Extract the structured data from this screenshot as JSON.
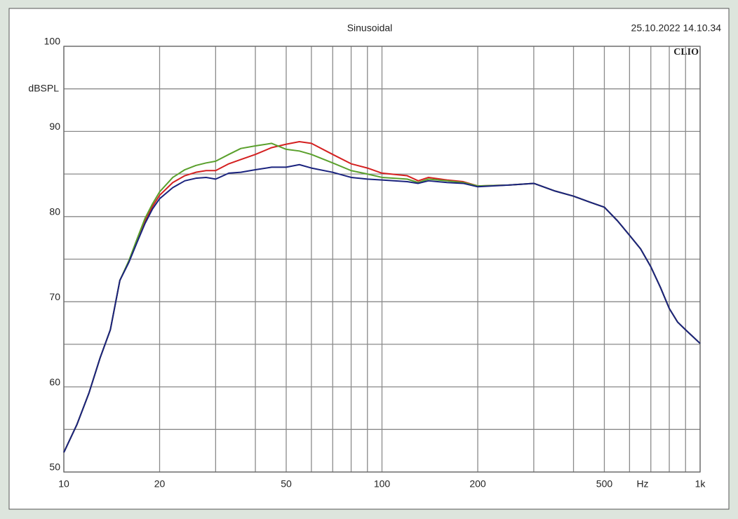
{
  "chart_data": {
    "type": "line",
    "title": "Sinusoidal",
    "timestamp": "25.10.2022 14.10.34",
    "brand": "CLIO",
    "y_label": "dBSPL",
    "x_label": "Hz",
    "xlog": true,
    "grid": true,
    "xlim": [
      10,
      1000
    ],
    "ylim": [
      50,
      100
    ],
    "xticks": [
      10,
      20,
      50,
      100,
      200,
      500,
      {
        "value": 1000,
        "label": "1k"
      }
    ],
    "yticks": [
      50,
      60,
      70,
      80,
      90,
      100
    ],
    "xgrid_minor": [
      30,
      40,
      60,
      70,
      80,
      90,
      300,
      400,
      600,
      700,
      800,
      900
    ],
    "ygrid_minor": [
      55,
      65,
      75,
      85,
      95
    ],
    "x": [
      10,
      11,
      12,
      13,
      14,
      15,
      16,
      17,
      18,
      19,
      20,
      22,
      24,
      26,
      28,
      30,
      33,
      36,
      40,
      45,
      50,
      55,
      60,
      70,
      80,
      90,
      100,
      120,
      130,
      140,
      160,
      180,
      200,
      250,
      300,
      350,
      400,
      450,
      500,
      550,
      600,
      650,
      700,
      750,
      800,
      850,
      900,
      1000
    ],
    "series": [
      {
        "color": "#d42020",
        "values": [
          52.3,
          55.6,
          59.3,
          63.4,
          66.7,
          72.5,
          74.7,
          77.2,
          79.5,
          81.2,
          82.5,
          84.0,
          84.8,
          85.2,
          85.4,
          85.4,
          86.2,
          86.7,
          87.3,
          88.1,
          88.5,
          88.8,
          88.6,
          87.3,
          86.2,
          85.7,
          85.1,
          84.8,
          84.2,
          84.6,
          84.3,
          84.1,
          83.6,
          83.7,
          83.9,
          83.0,
          82.4,
          81.7,
          81.1,
          79.5,
          77.8,
          76.2,
          74.1,
          71.7,
          69.2,
          67.6,
          66.7,
          65.1
        ]
      },
      {
        "color": "#5aa02c",
        "values": [
          52.3,
          55.6,
          59.3,
          63.4,
          66.7,
          72.5,
          74.8,
          77.4,
          79.8,
          81.5,
          82.9,
          84.6,
          85.5,
          86.0,
          86.3,
          86.5,
          87.3,
          88.0,
          88.3,
          88.6,
          87.9,
          87.7,
          87.3,
          86.3,
          85.4,
          85.0,
          84.6,
          84.4,
          84.0,
          84.4,
          84.2,
          84.0,
          83.6,
          83.7,
          83.9,
          83.0,
          82.4,
          81.7,
          81.1,
          79.5,
          77.8,
          76.2,
          74.1,
          71.7,
          69.2,
          67.6,
          66.7,
          65.1
        ]
      },
      {
        "color": "#1a237e",
        "values": [
          52.3,
          55.6,
          59.3,
          63.4,
          66.7,
          72.5,
          74.6,
          77.0,
          79.2,
          80.9,
          82.1,
          83.4,
          84.2,
          84.5,
          84.6,
          84.4,
          85.1,
          85.2,
          85.5,
          85.8,
          85.8,
          86.1,
          85.7,
          85.2,
          84.6,
          84.4,
          84.3,
          84.1,
          83.9,
          84.2,
          84.0,
          83.9,
          83.5,
          83.7,
          83.9,
          83.0,
          82.4,
          81.7,
          81.1,
          79.5,
          77.8,
          76.2,
          74.1,
          71.7,
          69.2,
          67.6,
          66.7,
          65.1
        ]
      }
    ]
  }
}
